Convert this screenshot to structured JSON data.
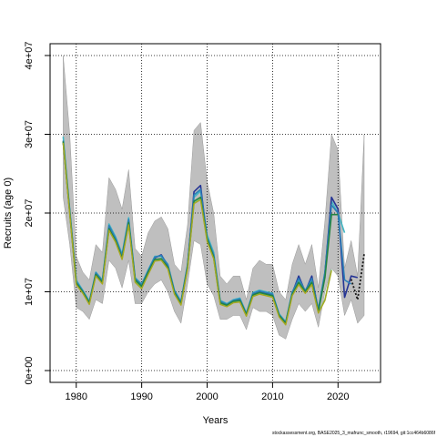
{
  "chart_data": {
    "type": "line",
    "xlabel": "Years",
    "ylabel": "Recruits (age 0)",
    "xlim": [
      1976,
      2026.5
    ],
    "ylim": [
      -1500000,
      41500000
    ],
    "x_ticks": [
      1980,
      1990,
      2000,
      2010,
      2020
    ],
    "y_ticks": [
      0,
      10000000,
      20000000,
      30000000,
      40000000
    ],
    "y_tick_labels": [
      "0e+00",
      "1e+07",
      "2e+07",
      "3e+07",
      "4e+07"
    ],
    "grid": true,
    "footer_text": "stockassessment.org, BASE2025_3_mafrunc_smooth, r19694, git:1cc464b6086f",
    "confidence_band": {
      "color": "#bfbfbf",
      "x": [
        1978,
        1979,
        1980,
        1981,
        1982,
        1983,
        1984,
        1985,
        1986,
        1987,
        1988,
        1989,
        1990,
        1991,
        1992,
        1993,
        1994,
        1995,
        1996,
        1997,
        1998,
        1999,
        2000,
        2001,
        2002,
        2003,
        2004,
        2005,
        2006,
        2007,
        2008,
        2009,
        2010,
        2011,
        2012,
        2013,
        2014,
        2015,
        2016,
        2017,
        2018,
        2019,
        2020,
        2021,
        2022,
        2023,
        2024
      ],
      "upper": [
        40000000,
        30000000,
        14500000,
        12500000,
        11500000,
        16000000,
        15000000,
        24500000,
        23000000,
        20500000,
        25500000,
        15500000,
        14500000,
        17500000,
        19000000,
        19500000,
        18000000,
        13500000,
        12500000,
        18500000,
        30500000,
        31500000,
        24000000,
        20000000,
        12000000,
        11000000,
        12000000,
        12000000,
        9000000,
        13000000,
        14000000,
        13500000,
        13500000,
        10000000,
        9000000,
        13500000,
        16000000,
        13500000,
        16000000,
        10500000,
        19000000,
        30000000,
        28000000,
        13000000,
        16500000,
        12000000,
        30000000
      ],
      "lower": [
        22000000,
        16000000,
        8000000,
        7500000,
        6500000,
        9000000,
        8500000,
        14000000,
        13000000,
        10500000,
        14000000,
        8500000,
        8500000,
        10000000,
        11000000,
        11500000,
        10000000,
        7500000,
        6000000,
        11000000,
        16500000,
        16000000,
        11000000,
        9500000,
        6500000,
        6500000,
        7000000,
        7000000,
        5200000,
        8000000,
        7500000,
        7500000,
        7000000,
        4500000,
        4000000,
        6500000,
        8500000,
        7500000,
        8500000,
        5500000,
        10000000,
        13000000,
        12000000,
        7000000,
        9000000,
        6000000,
        7000000
      ]
    },
    "series": [
      {
        "color": "#41b6c4",
        "style": "solid",
        "width": 1.6,
        "x": [
          1978,
          1979,
          1980,
          1981,
          1982,
          1983,
          1984,
          1985,
          1986,
          1987,
          1988,
          1989,
          1990,
          1991,
          1992,
          1993,
          1994,
          1995,
          1996,
          1997,
          1998,
          1999,
          2000,
          2001,
          2002,
          2003,
          2004,
          2005,
          2006,
          2007,
          2008,
          2009,
          2010,
          2011,
          2012,
          2013,
          2014,
          2015,
          2016,
          2017,
          2018,
          2019,
          2020,
          2021
        ],
        "values": [
          29700000,
          20500000,
          11500000,
          10200000,
          8800000,
          12500000,
          11500000,
          18600000,
          17000000,
          14800000,
          19400000,
          11800000,
          11000000,
          12800000,
          14500000,
          14500000,
          13500000,
          10200000,
          8800000,
          13500000,
          22000000,
          22800000,
          17200000,
          15000000,
          8900000,
          8500000,
          9000000,
          9200000,
          7300000,
          9900000,
          10200000,
          10000000,
          9800000,
          7200000,
          6200000,
          10000000,
          11500000,
          10200000,
          11500000,
          7800000,
          12500000,
          21500000,
          20000000,
          17500000
        ]
      },
      {
        "color": "#253494",
        "style": "solid",
        "width": 1.6,
        "x": [
          1978,
          1979,
          1980,
          1981,
          1982,
          1983,
          1984,
          1985,
          1986,
          1987,
          1988,
          1989,
          1990,
          1991,
          1992,
          1993,
          1994,
          1995,
          1996,
          1997,
          1998,
          1999,
          2000,
          2001,
          2002,
          2003,
          2004,
          2005,
          2006,
          2007,
          2008,
          2009,
          2010,
          2011,
          2012,
          2013,
          2014,
          2015,
          2016,
          2017,
          2018,
          2019,
          2020,
          2021,
          2022,
          2023
        ],
        "values": [
          29000000,
          20200000,
          11200000,
          10000000,
          8600000,
          12300000,
          11300000,
          18200000,
          16700000,
          14500000,
          19000000,
          11600000,
          10800000,
          12600000,
          14300000,
          14700000,
          13300000,
          10000000,
          8600000,
          13300000,
          22700000,
          23500000,
          16600000,
          14500000,
          8700000,
          8300000,
          8800000,
          9000000,
          7100000,
          9700000,
          10000000,
          9800000,
          9600000,
          7000000,
          6000000,
          9800000,
          12000000,
          10000000,
          12000000,
          7600000,
          12300000,
          22000000,
          20500000,
          9300000,
          12000000,
          11800000
        ]
      },
      {
        "color": "#2c7fb8",
        "style": "solid",
        "width": 1.6,
        "x": [
          1978,
          1979,
          1980,
          1981,
          1982,
          1983,
          1984,
          1985,
          1986,
          1987,
          1988,
          1989,
          1990,
          1991,
          1992,
          1993,
          1994,
          1995,
          1996,
          1997,
          1998,
          1999,
          2000,
          2001,
          2002,
          2003,
          2004,
          2005,
          2006,
          2007,
          2008,
          2009,
          2010,
          2011,
          2012,
          2013,
          2014,
          2015,
          2016,
          2017,
          2018,
          2019,
          2020,
          2021,
          2022
        ],
        "values": [
          29200000,
          20300000,
          11300000,
          10100000,
          8700000,
          12400000,
          11400000,
          18400000,
          16800000,
          14600000,
          19200000,
          11700000,
          10900000,
          12700000,
          14400000,
          14600000,
          13400000,
          10100000,
          8700000,
          13400000,
          22300000,
          23000000,
          16900000,
          14700000,
          8800000,
          8400000,
          8900000,
          9100000,
          7200000,
          9800000,
          10100000,
          9900000,
          9700000,
          7100000,
          6100000,
          9900000,
          11700000,
          10100000,
          11700000,
          7700000,
          12400000,
          21000000,
          20000000,
          11500000,
          11000000
        ]
      },
      {
        "color": "#1a1a1a",
        "style": "dotted",
        "width": 1.8,
        "x": [
          2022,
          2023,
          2024
        ],
        "values": [
          11600000,
          9000000,
          14800000
        ]
      },
      {
        "color": "#78c679",
        "style": "solid",
        "width": 1.6,
        "x": [
          1978,
          1979,
          1980,
          1981,
          1982,
          1983,
          1984,
          1985,
          1986,
          1987,
          1988,
          1989,
          1990,
          1991,
          1992,
          1993,
          1994,
          1995,
          1996,
          1997,
          1998,
          1999,
          2000,
          2001,
          2002,
          2003,
          2004,
          2005,
          2006,
          2007,
          2008,
          2009,
          2010,
          2011,
          2012,
          2013,
          2014,
          2015,
          2016,
          2017,
          2018,
          2019
        ],
        "values": [
          29000000,
          20000000,
          11000000,
          9900000,
          8500000,
          12100000,
          11100000,
          17900000,
          16400000,
          14200000,
          18600000,
          11300000,
          10500000,
          12300000,
          14000000,
          14100000,
          13000000,
          9800000,
          8400000,
          13000000,
          21300000,
          21800000,
          16500000,
          14300000,
          8500000,
          8200000,
          8700000,
          8800000,
          7000000,
          9500000,
          9800000,
          9600000,
          9400000,
          6900000,
          5900000,
          9600000,
          11000000,
          9900000,
          11000000,
          7400000,
          9000000,
          12800000
        ]
      },
      {
        "color": "#238443",
        "style": "solid",
        "width": 1.6,
        "x": [
          1978,
          1979,
          1980,
          1981,
          1982,
          1983,
          1984,
          1985,
          1986,
          1987,
          1988,
          1989,
          1990,
          1991,
          1992,
          1993,
          1994,
          1995,
          1996,
          1997,
          1998,
          1999,
          2000,
          2001,
          2002,
          2003,
          2004,
          2005,
          2006,
          2007,
          2008,
          2009,
          2010,
          2011,
          2012,
          2013,
          2014,
          2015,
          2016,
          2017,
          2018,
          2019,
          2020
        ],
        "values": [
          29100000,
          20100000,
          11100000,
          10000000,
          8600000,
          12200000,
          11200000,
          18000000,
          16500000,
          14300000,
          18800000,
          11500000,
          10700000,
          12500000,
          14100000,
          14200000,
          13100000,
          9900000,
          8500000,
          13100000,
          21500000,
          22000000,
          16700000,
          14400000,
          8600000,
          8300000,
          8800000,
          8900000,
          7100000,
          9600000,
          9900000,
          9700000,
          9500000,
          7000000,
          6000000,
          9700000,
          11200000,
          10000000,
          11200000,
          7500000,
          11800000,
          19800000,
          19800000
        ]
      },
      {
        "color": "#a8a820",
        "style": "solid",
        "width": 1.4,
        "x": [
          1978,
          1979,
          1980,
          1981,
          1982,
          1983,
          1984,
          1985,
          1986,
          1987,
          1988,
          1989,
          1990,
          1991,
          1992,
          1993,
          1994,
          1995,
          1996,
          1997,
          1998,
          1999,
          2000,
          2001,
          2002,
          2003,
          2004,
          2005,
          2006,
          2007,
          2008,
          2009,
          2010,
          2011,
          2012,
          2013,
          2014,
          2015,
          2016,
          2017,
          2018,
          2019
        ],
        "values": [
          28900000,
          19900000,
          10900000,
          9800000,
          8400000,
          12000000,
          11000000,
          17800000,
          16300000,
          14100000,
          18500000,
          11200000,
          10400000,
          12200000,
          13900000,
          14000000,
          12900000,
          9700000,
          8300000,
          12900000,
          21200000,
          21700000,
          16400000,
          14200000,
          8400000,
          8100000,
          8600000,
          8700000,
          6900000,
          9400000,
          9700000,
          9500000,
          9300000,
          6800000,
          5800000,
          9500000,
          10900000,
          9800000,
          10900000,
          7300000,
          8900000,
          12700000
        ]
      }
    ]
  }
}
